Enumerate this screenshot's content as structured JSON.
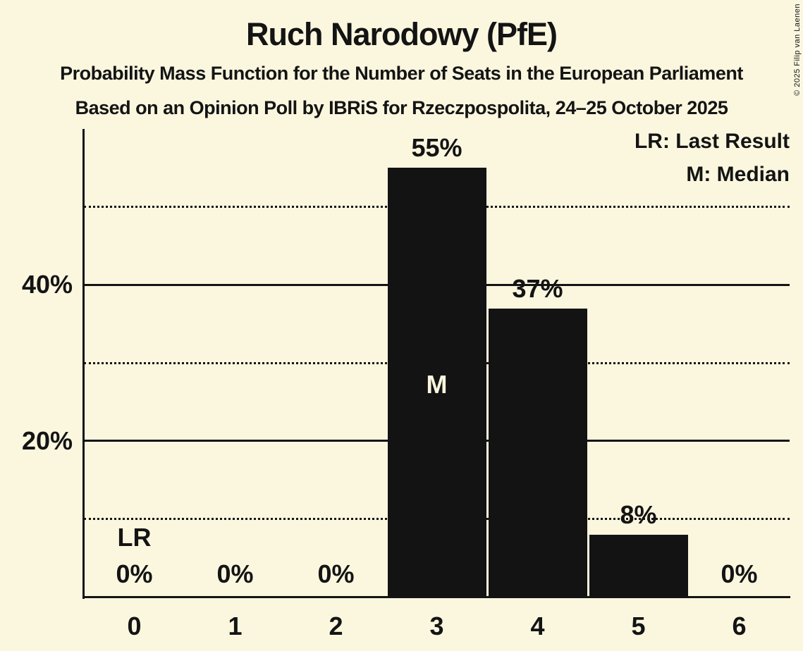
{
  "copyright": "© 2025 Filip van Laenen",
  "colors": {
    "background": "#FBF7DF",
    "bar": "#131313",
    "text": "#141414",
    "bar_label": "#FAF5DE"
  },
  "chart_data": {
    "type": "bar",
    "title": "Ruch Narodowy (PfE)",
    "subtitle": "Probability Mass Function for the Number of Seats in the European Parliament",
    "source_line": "Based on an Opinion Poll by IBRiS for Rzeczpospolita, 24–25 October 2025",
    "xlabel": "",
    "ylabel": "",
    "categories": [
      "0",
      "1",
      "2",
      "3",
      "4",
      "5",
      "6"
    ],
    "values": [
      0,
      0,
      0,
      55,
      37,
      8,
      0
    ],
    "value_labels": [
      "0%",
      "0%",
      "0%",
      "55%",
      "37%",
      "8%",
      "0%"
    ],
    "ylim": [
      0,
      60
    ],
    "solid_gridlines": [
      20,
      40
    ],
    "dotted_gridlines": [
      10,
      30,
      50
    ],
    "ytick_labels": [
      {
        "value": 20,
        "label": "20%"
      },
      {
        "value": 40,
        "label": "40%"
      }
    ],
    "grid": true,
    "legend_position": "top-right",
    "legend": {
      "lr": "LR: Last Result",
      "m": "M: Median"
    },
    "median_seat": 3,
    "median_label": "M",
    "last_result_seat": 0,
    "last_result_label": "LR"
  }
}
